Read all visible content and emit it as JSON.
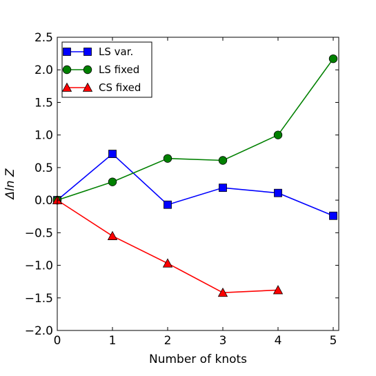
{
  "chart_data": {
    "type": "line",
    "xlabel": "Number of knots",
    "ylabel": "Δln Z",
    "xlim": [
      0,
      5.1
    ],
    "ylim": [
      -2.0,
      2.5
    ],
    "xticks": [
      0,
      1,
      2,
      3,
      4,
      5
    ],
    "yticks": [
      2.5,
      2.0,
      1.5,
      1.0,
      0.5,
      0.0,
      -0.5,
      -1.0,
      -1.5,
      -2.0
    ],
    "xtick_labels": [
      "0",
      "1",
      "2",
      "3",
      "4",
      "5"
    ],
    "ytick_labels": [
      "2.5",
      "2.0",
      "1.5",
      "1.0",
      "0.5",
      "0.0",
      "−0.5",
      "−1.0",
      "−1.5",
      "−2.0"
    ],
    "grid": false,
    "legend_position": "top-left",
    "series": [
      {
        "name": "LS var.",
        "color": "#0000ff",
        "marker": "square",
        "x": [
          0,
          1,
          2,
          3,
          4,
          5
        ],
        "y": [
          0.0,
          0.71,
          -0.07,
          0.19,
          0.11,
          -0.24
        ]
      },
      {
        "name": "LS fixed",
        "color": "#008000",
        "marker": "circle",
        "x": [
          0,
          1,
          2,
          3,
          4,
          5
        ],
        "y": [
          0.0,
          0.28,
          0.64,
          0.61,
          1.0,
          2.17
        ]
      },
      {
        "name": "CS fixed",
        "color": "#ff0000",
        "marker": "triangle",
        "x": [
          0,
          1,
          2,
          3,
          4
        ],
        "y": [
          0.0,
          -0.55,
          -0.97,
          -1.42,
          -1.38
        ]
      }
    ]
  }
}
